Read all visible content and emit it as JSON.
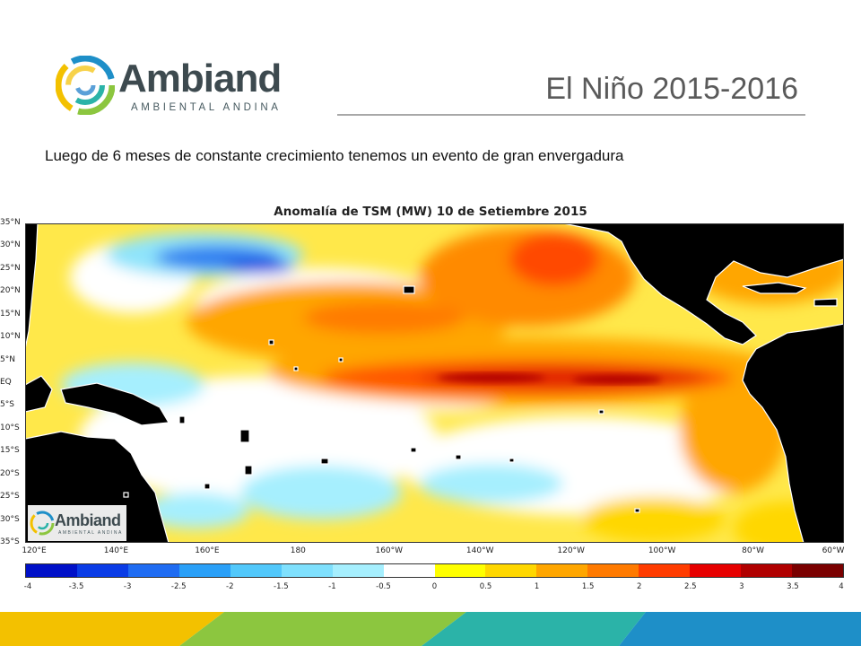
{
  "brand": {
    "name": "Ambiand",
    "tagline": "AMBIENTAL ANDINA"
  },
  "slide": {
    "title": "El Niño 2015-2016",
    "subtitle": "Luego de 6 meses de constante crecimiento tenemos un evento de gran envergadura"
  },
  "map": {
    "title": "Anomalía de TSM (MW) 10 de Setiembre 2015",
    "lat_labels": [
      "35°N",
      "30°N",
      "25°N",
      "20°N",
      "15°N",
      "10°N",
      "5°N",
      "EQ",
      "5°S",
      "10°S",
      "15°S",
      "20°S",
      "25°S",
      "30°S",
      "35°S"
    ],
    "lon_labels": [
      "120°E",
      "140°E",
      "160°E",
      "180",
      "160°W",
      "140°W",
      "120°W",
      "100°W",
      "80°W",
      "60°W"
    ],
    "watermark": {
      "name": "Ambiand",
      "tagline": "AMBIENTAL ANDINA"
    }
  },
  "colorbar": {
    "ticks": [
      "-4",
      "-3.5",
      "-3",
      "-2.5",
      "-2",
      "-1.5",
      "-1",
      "-0.5",
      "0",
      "0.5",
      "1",
      "1.5",
      "2",
      "2.5",
      "3",
      "3.5",
      "4"
    ],
    "colors": [
      "#0010c8",
      "#0a3ce6",
      "#1f6cf2",
      "#2aa0f8",
      "#52c8fb",
      "#7fe0fd",
      "#a6effe",
      "#ffffff",
      "#ffffff",
      "#ffff00",
      "#ffd700",
      "#ffa600",
      "#ff7a00",
      "#ff3c00",
      "#e60000",
      "#b00000",
      "#7a0000"
    ]
  },
  "footer": {
    "colors": [
      "#f3c100",
      "#8cc63f",
      "#2bb3a8",
      "#1e8fc8"
    ]
  }
}
